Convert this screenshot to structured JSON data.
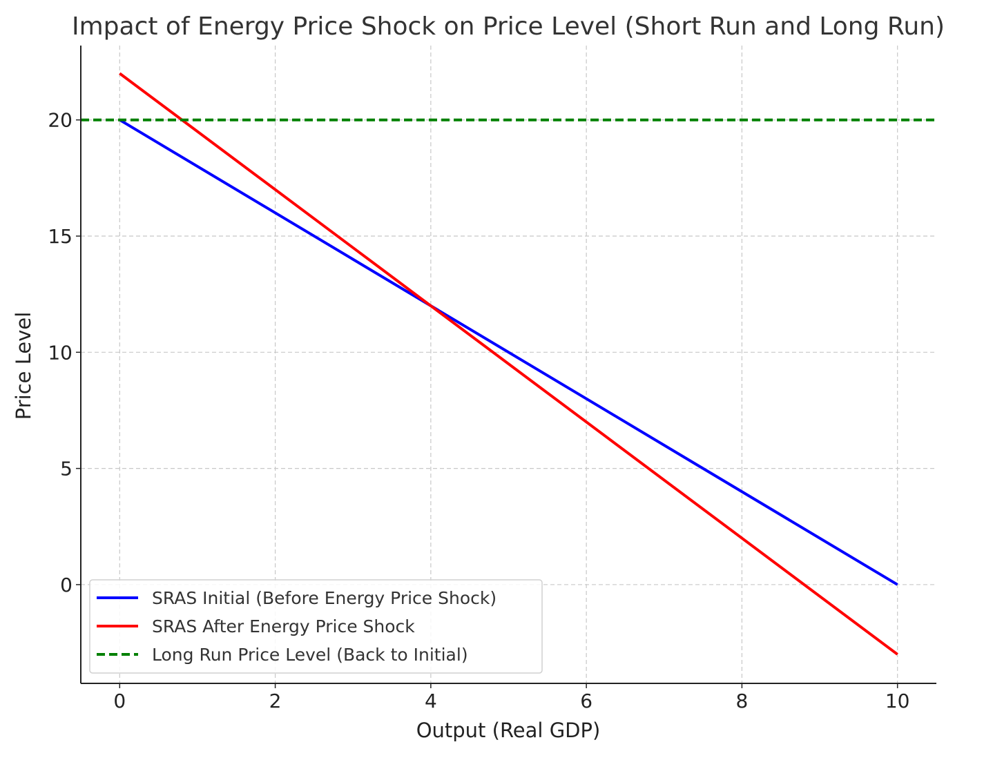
{
  "chart_data": {
    "type": "line",
    "title": "Impact of Energy Price Shock on Price Level (Short Run and Long Run)",
    "xlabel": "Output (Real GDP)",
    "ylabel": "Price Level",
    "xlim": [
      -0.5,
      10.5
    ],
    "ylim": [
      -4.25,
      23.2
    ],
    "x_ticks": [
      0,
      2,
      4,
      6,
      8,
      10
    ],
    "y_ticks": [
      0,
      5,
      10,
      15,
      20
    ],
    "grid": true,
    "legend_position": "lower-left",
    "series": [
      {
        "name": "SRAS Initial (Before Energy Price Shock)",
        "color": "#0000ff",
        "style": "solid",
        "x": [
          0,
          10
        ],
        "y": [
          20,
          0
        ]
      },
      {
        "name": "SRAS After Energy Price Shock",
        "color": "#ff0000",
        "style": "solid",
        "x": [
          0,
          10
        ],
        "y": [
          22,
          -3
        ]
      },
      {
        "name": "Long Run Price Level (Back to Initial)",
        "color": "#008000",
        "style": "dashed",
        "x": [
          -0.5,
          10.5
        ],
        "y": [
          20,
          20
        ]
      }
    ]
  }
}
